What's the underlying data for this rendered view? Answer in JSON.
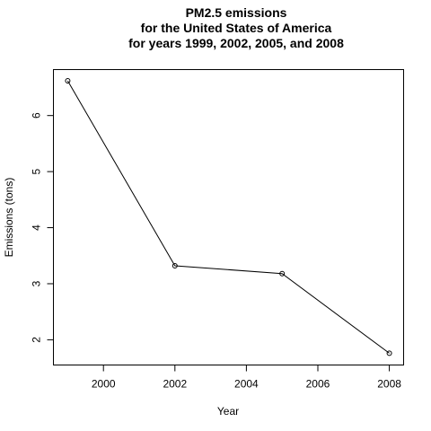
{
  "chart_data": {
    "type": "line",
    "title": [
      "PM2.5 emissions",
      "for the United States of America",
      "for years 1999, 2002, 2005, and 2008"
    ],
    "xlabel": "Year",
    "ylabel": "Emissions (tons)",
    "x": [
      1999,
      2002,
      2005,
      2008
    ],
    "y": [
      6.62,
      3.32,
      3.18,
      1.76
    ],
    "xlim": [
      1998.6,
      2008.4
    ],
    "ylim": [
      1.55,
      6.82
    ],
    "xticks": [
      2000,
      2002,
      2004,
      2006,
      2008
    ],
    "yticks": [
      2,
      3,
      4,
      5,
      6
    ],
    "grid": false,
    "markers": "open-circle",
    "color": "#000000"
  }
}
